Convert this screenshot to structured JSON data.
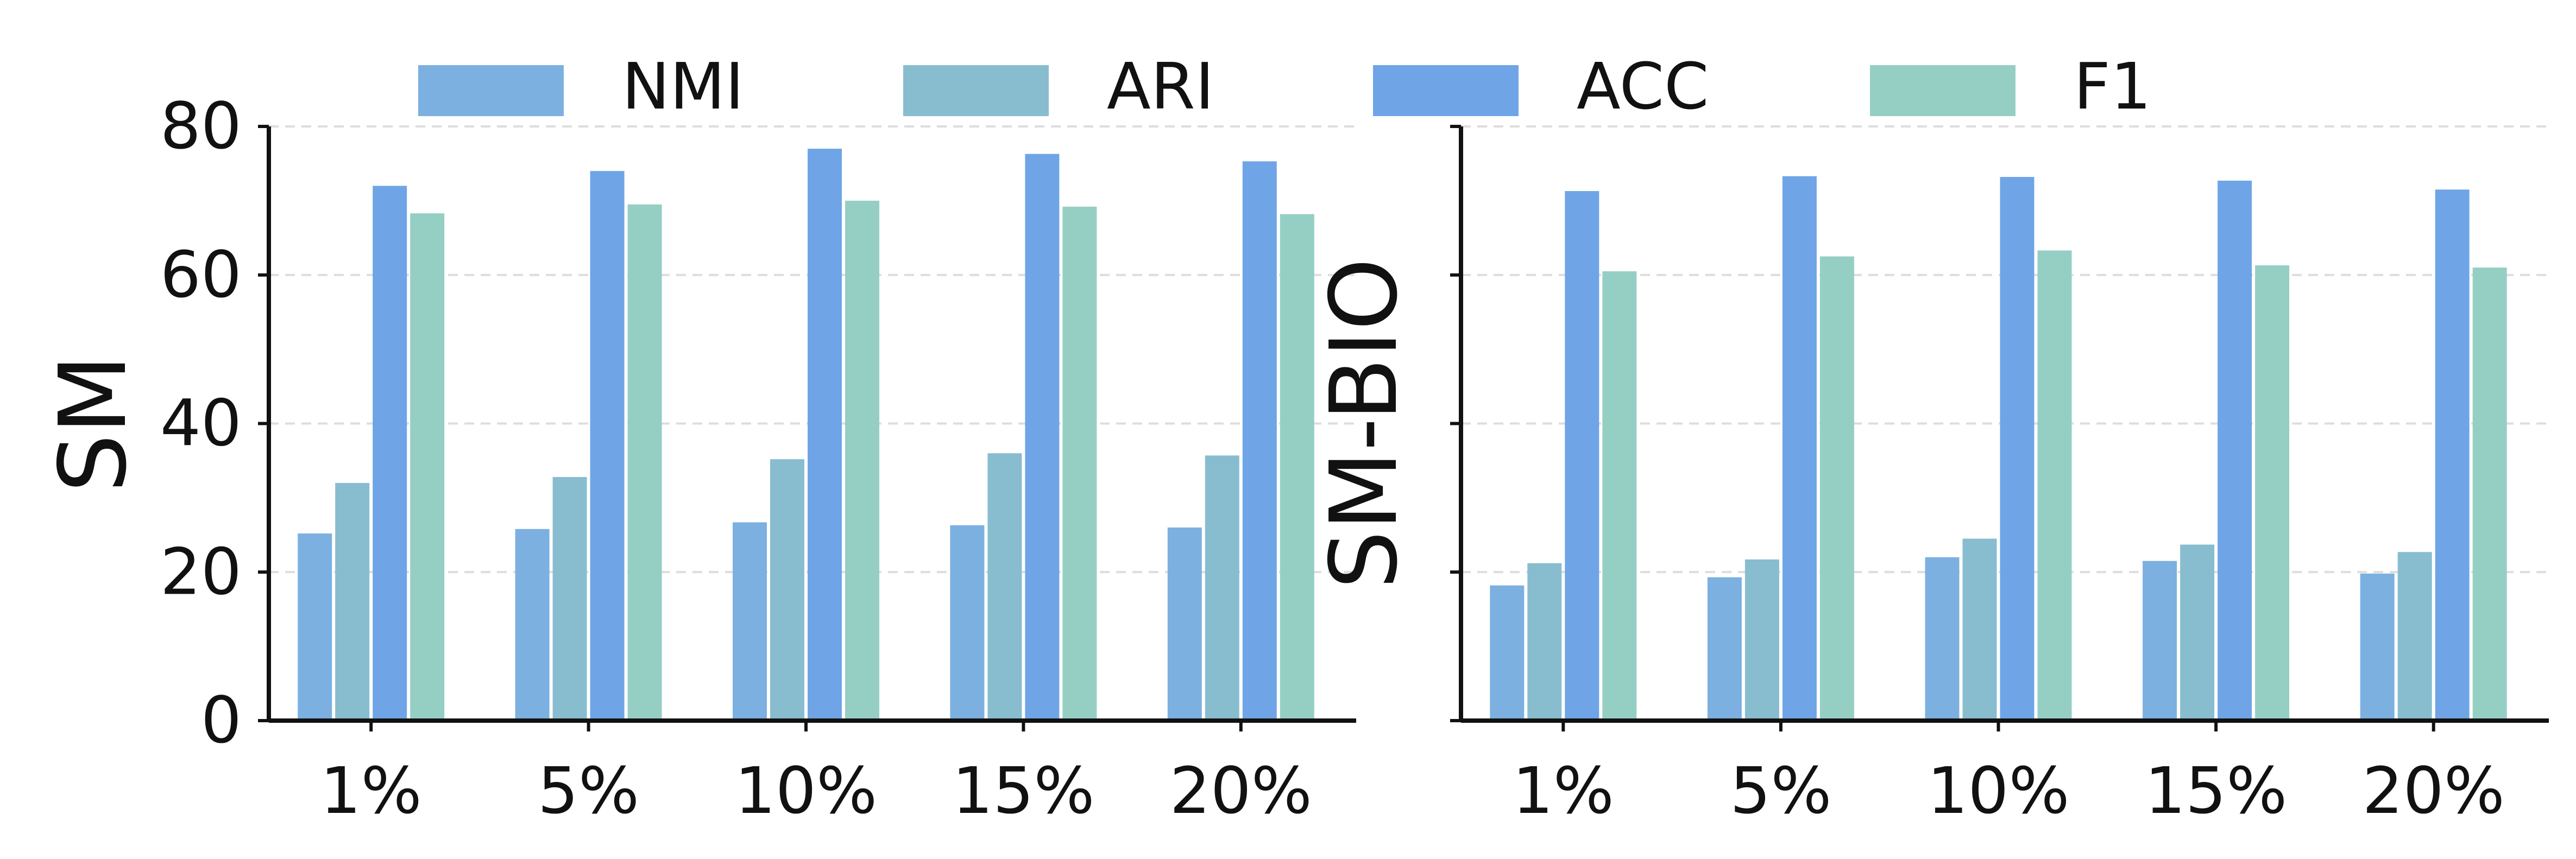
{
  "legend": [
    {
      "label": "NMI",
      "color": "#7cb0e0"
    },
    {
      "label": "ARI",
      "color": "#88bdd0"
    },
    {
      "label": "ACC",
      "color": "#6fa5e6"
    },
    {
      "label": "F1",
      "color": "#95cfc4"
    }
  ],
  "chart_data": [
    {
      "type": "bar",
      "ylabel": "SM",
      "categories": [
        "1%",
        "5%",
        "10%",
        "15%",
        "20%"
      ],
      "ylim": [
        0,
        80
      ],
      "yticks": [
        "0",
        "20",
        "40",
        "60",
        "80"
      ],
      "grid": true,
      "legend_position": "top",
      "series": [
        {
          "name": "NMI",
          "values": [
            25.2,
            25.8,
            26.7,
            26.3,
            26.0
          ]
        },
        {
          "name": "ARI",
          "values": [
            32.0,
            32.8,
            35.2,
            36.0,
            35.7
          ]
        },
        {
          "name": "ACC",
          "values": [
            72.0,
            74.0,
            77.0,
            76.3,
            75.3
          ]
        },
        {
          "name": "F1",
          "values": [
            68.3,
            69.5,
            70.0,
            69.2,
            68.2
          ]
        }
      ]
    },
    {
      "type": "bar",
      "ylabel": "SM-BIO",
      "categories": [
        "1%",
        "5%",
        "10%",
        "15%",
        "20%"
      ],
      "ylim": [
        0,
        80
      ],
      "yticks": [
        "",
        "",
        "",
        "",
        ""
      ],
      "grid": true,
      "series": [
        {
          "name": "NMI",
          "values": [
            18.2,
            19.3,
            22.0,
            21.5,
            19.8
          ]
        },
        {
          "name": "ARI",
          "values": [
            21.2,
            21.7,
            24.5,
            23.7,
            22.7
          ]
        },
        {
          "name": "ACC",
          "values": [
            71.3,
            73.3,
            73.2,
            72.7,
            71.5
          ]
        },
        {
          "name": "F1",
          "values": [
            60.5,
            62.5,
            63.3,
            61.3,
            61.0
          ]
        }
      ]
    }
  ]
}
